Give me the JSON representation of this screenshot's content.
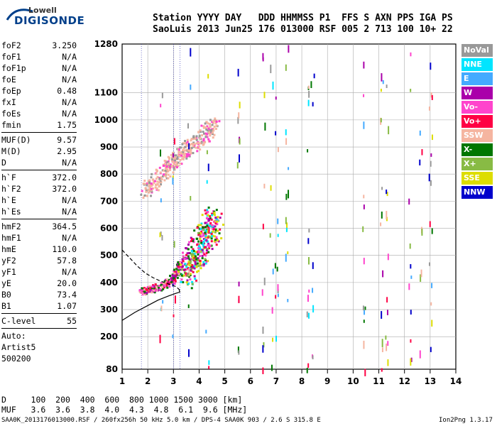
{
  "logo": {
    "top": "Lowell",
    "bottom": "DIGISONDE"
  },
  "header": {
    "line1": "Station YYYY DAY   DDD HHMMSS P1  FFS S AXN PPS IGA PS",
    "line2": "SaoLuis 2013 Jun25 176 013000 RSF 005 2 713 100 10+ 22"
  },
  "params": [
    {
      "name": "foF2",
      "value": "3.250"
    },
    {
      "name": "foF1",
      "value": "N/A"
    },
    {
      "name": "foF1p",
      "value": "N/A"
    },
    {
      "name": "foE",
      "value": "N/A"
    },
    {
      "name": "foEp",
      "value": "0.48"
    },
    {
      "name": "fxI",
      "value": "N/A"
    },
    {
      "name": "foEs",
      "value": "N/A"
    },
    {
      "name": "fmin",
      "value": "1.75",
      "sep_after": true
    },
    {
      "name": "MUF(D)",
      "value": "9.57"
    },
    {
      "name": "M(D)",
      "value": "2.95"
    },
    {
      "name": "D",
      "value": "N/A",
      "sep_after": true
    },
    {
      "name": "h`F",
      "value": "372.0"
    },
    {
      "name": "h`F2",
      "value": "372.0"
    },
    {
      "name": "h`E",
      "value": "N/A"
    },
    {
      "name": "h`Es",
      "value": "N/A",
      "sep_after": true
    },
    {
      "name": "hmF2",
      "value": "364.5"
    },
    {
      "name": "hmF1",
      "value": "N/A"
    },
    {
      "name": "hmE",
      "value": "110.0"
    },
    {
      "name": "yF2",
      "value": "57.8"
    },
    {
      "name": "yF1",
      "value": "N/A"
    },
    {
      "name": "yE",
      "value": "20.0"
    },
    {
      "name": "B0",
      "value": "73.4"
    },
    {
      "name": "B1",
      "value": "1.07",
      "sep_after": true
    },
    {
      "name": "C-level",
      "value": "55",
      "sep_after": true
    }
  ],
  "autoscaling": [
    "Auto:",
    "Artist5",
    "500200"
  ],
  "legend": [
    {
      "label": "NoVal",
      "color": "#999999"
    },
    {
      "label": "NNE",
      "color": "#00e5ff"
    },
    {
      "label": "E",
      "color": "#44aaff"
    },
    {
      "label": "W",
      "color": "#aa00aa"
    },
    {
      "label": "Vo-",
      "color": "#ff44cc"
    },
    {
      "label": "Vo+",
      "color": "#ff0044"
    },
    {
      "label": "SSW",
      "color": "#f5b5a0"
    },
    {
      "label": "X-",
      "color": "#007700"
    },
    {
      "label": "X+",
      "color": "#88bb44"
    },
    {
      "label": "SSE",
      "color": "#dddd00"
    },
    {
      "label": "NNW",
      "color": "#0000cc"
    }
  ],
  "chart_data": {
    "type": "scatter",
    "x_ticks": [
      "1",
      "2",
      "3",
      "4",
      "5",
      "6",
      "7",
      "8",
      "9",
      "10",
      "11",
      "12",
      "13",
      "14"
    ],
    "y_ticks": [
      "80",
      "200",
      "300",
      "400",
      "500",
      "600",
      "700",
      "800",
      "900",
      "1000",
      "1100",
      "1280"
    ],
    "xlim": [
      1,
      14
    ],
    "ylim": [
      80,
      1280
    ],
    "xlabel": "",
    "ylabel": "",
    "grid": true,
    "legend_position": "right",
    "traces": {
      "f_trace": {
        "freq": [
          1.7,
          1.9,
          2.2,
          2.6,
          2.9,
          3.1,
          3.25
        ],
        "height": [
          370,
          375,
          380,
          392,
          410,
          440,
          480
        ]
      },
      "f_high": {
        "freq": [
          1.8,
          2.2,
          2.6,
          2.9,
          3.2,
          3.5,
          3.9,
          4.3,
          4.6
        ],
        "height": [
          740,
          770,
          810,
          840,
          870,
          900,
          930,
          960,
          990
        ]
      },
      "e_cloud": {
        "freq": [
          3.4,
          3.6,
          3.9,
          4.1,
          4.4,
          4.6
        ],
        "height": [
          420,
          460,
          520,
          560,
          600,
          640
        ]
      }
    },
    "profile_solid": {
      "freq": [
        1,
        1.5,
        2,
        2.4,
        2.8,
        3.1,
        3.25,
        3.22
      ],
      "height": [
        260,
        290,
        315,
        335,
        350,
        360,
        364.5,
        372
      ]
    },
    "profile_dashed": {
      "freq": [
        1,
        1.3,
        1.6,
        1.9,
        2.2,
        2.5,
        2.8,
        3.1,
        3.25
      ],
      "height": [
        520,
        490,
        460,
        435,
        418,
        405,
        395,
        385,
        372
      ]
    }
  },
  "bottom": {
    "row1": "D     100  200  400  600  800 1000 1500 3000 [km]",
    "row2": "MUF   3.6  3.6  3.8  4.0  4.3  4.8  6.1  9.6 [MHz]",
    "footer": "SAA0K_2013176013000.RSF / 260fx256h 50 kHz 5.0 km / DPS-4 SAA0K 903 / 2.6 S 315.8 E",
    "version": "Ion2Png 1.3.17"
  }
}
